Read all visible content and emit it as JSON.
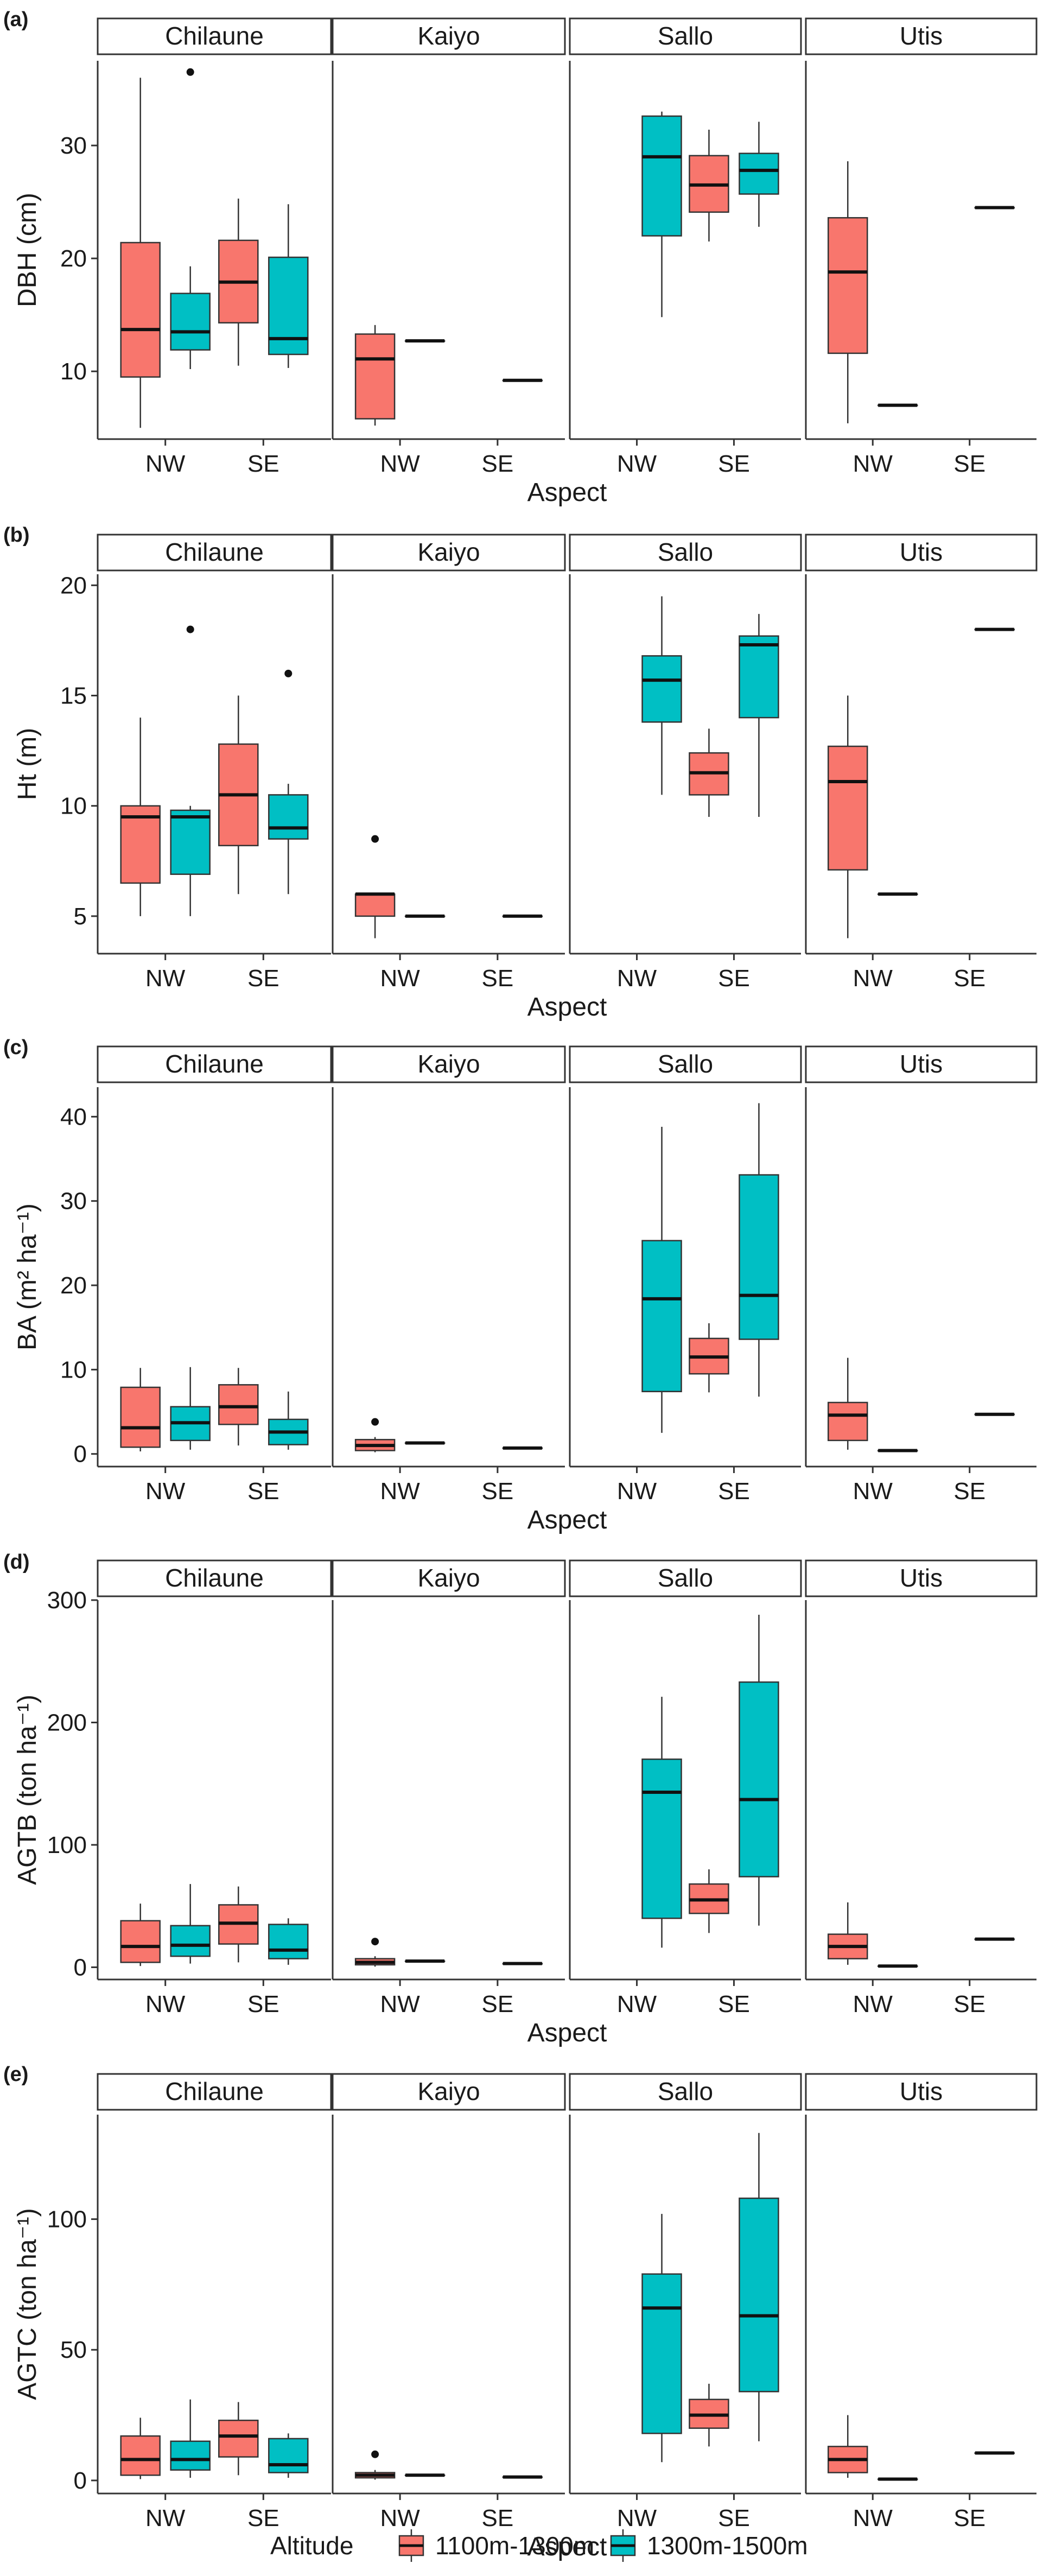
{
  "chart_data": {
    "type": "box",
    "facets": [
      "Chilaune",
      "Kaiyo",
      "Sallo",
      "Utis"
    ],
    "categories": [
      "NW",
      "SE"
    ],
    "xlabel": "Aspect",
    "legend": {
      "title": "Altitude",
      "position": "bottom",
      "entries": [
        {
          "name": "1100m-1300m",
          "color": "#F8766D"
        },
        {
          "name": "1300m-1500m",
          "color": "#00BFC4"
        }
      ]
    },
    "panels": [
      {
        "tag": "(a)",
        "ylabel": "DBH (cm)",
        "ylim": [
          4,
          37.5
        ],
        "yticks": [
          10,
          20,
          30
        ],
        "boxes": [
          {
            "facet": "Chilaune",
            "aspect": "NW",
            "altitude": "1100m-1300m",
            "min": 5,
            "q1": 9.5,
            "median": 13.7,
            "q3": 21.4,
            "max": 36,
            "outliers": []
          },
          {
            "facet": "Chilaune",
            "aspect": "NW",
            "altitude": "1300m-1500m",
            "min": 10.2,
            "q1": 11.9,
            "median": 13.5,
            "q3": 16.9,
            "max": 19.3,
            "outliers": [
              36.5
            ]
          },
          {
            "facet": "Chilaune",
            "aspect": "SE",
            "altitude": "1100m-1300m",
            "min": 10.5,
            "q1": 14.3,
            "median": 17.9,
            "q3": 21.6,
            "max": 25.3,
            "outliers": []
          },
          {
            "facet": "Chilaune",
            "aspect": "SE",
            "altitude": "1300m-1500m",
            "min": 10.3,
            "q1": 11.5,
            "median": 12.9,
            "q3": 20.1,
            "max": 24.8,
            "outliers": []
          },
          {
            "facet": "Kaiyo",
            "aspect": "NW",
            "altitude": "1100m-1300m",
            "min": 5.2,
            "q1": 5.8,
            "median": 11.1,
            "q3": 13.3,
            "max": 14.1,
            "outliers": []
          },
          {
            "facet": "Kaiyo",
            "aspect": "NW",
            "altitude": "1300m-1500m",
            "min": 12.7,
            "q1": 12.7,
            "median": 12.7,
            "q3": 12.7,
            "max": 12.7,
            "outliers": []
          },
          {
            "facet": "Kaiyo",
            "aspect": "SE",
            "altitude": "1300m-1500m",
            "min": 9.2,
            "q1": 9.2,
            "median": 9.2,
            "q3": 9.2,
            "max": 9.2,
            "outliers": []
          },
          {
            "facet": "Sallo",
            "aspect": "NW",
            "altitude": "1300m-1500m",
            "min": 14.8,
            "q1": 22.0,
            "median": 29.0,
            "q3": 32.6,
            "max": 33.0,
            "outliers": []
          },
          {
            "facet": "Sallo",
            "aspect": "SE",
            "altitude": "1100m-1300m",
            "min": 21.5,
            "q1": 24.1,
            "median": 26.5,
            "q3": 29.1,
            "max": 31.4,
            "outliers": []
          },
          {
            "facet": "Sallo",
            "aspect": "SE",
            "altitude": "1300m-1500m",
            "min": 22.8,
            "q1": 25.7,
            "median": 27.8,
            "q3": 29.3,
            "max": 32.1,
            "outliers": []
          },
          {
            "facet": "Utis",
            "aspect": "NW",
            "altitude": "1100m-1300m",
            "min": 5.4,
            "q1": 11.6,
            "median": 18.8,
            "q3": 23.6,
            "max": 28.6,
            "outliers": []
          },
          {
            "facet": "Utis",
            "aspect": "NW",
            "altitude": "1300m-1500m",
            "min": 7.0,
            "q1": 7.0,
            "median": 7.0,
            "q3": 7.0,
            "max": 7.0,
            "outliers": []
          },
          {
            "facet": "Utis",
            "aspect": "SE",
            "altitude": "1300m-1500m",
            "min": 24.5,
            "q1": 24.5,
            "median": 24.5,
            "q3": 24.5,
            "max": 24.5,
            "outliers": []
          }
        ]
      },
      {
        "tag": "(b)",
        "ylabel": "Ht (m)",
        "ylim": [
          3.3,
          20.5
        ],
        "yticks": [
          5,
          10,
          15,
          20
        ],
        "boxes": [
          {
            "facet": "Chilaune",
            "aspect": "NW",
            "altitude": "1100m-1300m",
            "min": 5,
            "q1": 6.5,
            "median": 9.5,
            "q3": 10,
            "max": 14,
            "outliers": []
          },
          {
            "facet": "Chilaune",
            "aspect": "NW",
            "altitude": "1300m-1500m",
            "min": 5,
            "q1": 6.9,
            "median": 9.5,
            "q3": 9.8,
            "max": 10,
            "outliers": [
              18
            ]
          },
          {
            "facet": "Chilaune",
            "aspect": "SE",
            "altitude": "1100m-1300m",
            "min": 6,
            "q1": 8.2,
            "median": 10.5,
            "q3": 12.8,
            "max": 15,
            "outliers": []
          },
          {
            "facet": "Chilaune",
            "aspect": "SE",
            "altitude": "1300m-1500m",
            "min": 6,
            "q1": 8.5,
            "median": 9.0,
            "q3": 10.5,
            "max": 11,
            "outliers": [
              16
            ]
          },
          {
            "facet": "Kaiyo",
            "aspect": "NW",
            "altitude": "1100m-1300m",
            "min": 4,
            "q1": 5,
            "median": 6,
            "q3": 6,
            "max": 6,
            "outliers": [
              8.5
            ]
          },
          {
            "facet": "Kaiyo",
            "aspect": "NW",
            "altitude": "1300m-1500m",
            "min": 5,
            "q1": 5,
            "median": 5,
            "q3": 5,
            "max": 5,
            "outliers": []
          },
          {
            "facet": "Kaiyo",
            "aspect": "SE",
            "altitude": "1300m-1500m",
            "min": 5,
            "q1": 5,
            "median": 5,
            "q3": 5,
            "max": 5,
            "outliers": []
          },
          {
            "facet": "Sallo",
            "aspect": "NW",
            "altitude": "1300m-1500m",
            "min": 10.5,
            "q1": 13.8,
            "median": 15.7,
            "q3": 16.8,
            "max": 19.5,
            "outliers": []
          },
          {
            "facet": "Sallo",
            "aspect": "SE",
            "altitude": "1100m-1300m",
            "min": 9.5,
            "q1": 10.5,
            "median": 11.5,
            "q3": 12.4,
            "max": 13.5,
            "outliers": []
          },
          {
            "facet": "Sallo",
            "aspect": "SE",
            "altitude": "1300m-1500m",
            "min": 9.5,
            "q1": 14.0,
            "median": 17.3,
            "q3": 17.7,
            "max": 18.7,
            "outliers": []
          },
          {
            "facet": "Utis",
            "aspect": "NW",
            "altitude": "1100m-1300m",
            "min": 4,
            "q1": 7.1,
            "median": 11.1,
            "q3": 12.7,
            "max": 15,
            "outliers": []
          },
          {
            "facet": "Utis",
            "aspect": "NW",
            "altitude": "1300m-1500m",
            "min": 6,
            "q1": 6,
            "median": 6,
            "q3": 6,
            "max": 6,
            "outliers": []
          },
          {
            "facet": "Utis",
            "aspect": "SE",
            "altitude": "1300m-1500m",
            "min": 18,
            "q1": 18,
            "median": 18,
            "q3": 18,
            "max": 18,
            "outliers": []
          }
        ]
      },
      {
        "tag": "(c)",
        "ylabel": "BA (m² ha⁻¹)",
        "ylim": [
          -1.5,
          43.5
        ],
        "yticks": [
          0,
          10,
          20,
          30,
          40
        ],
        "boxes": [
          {
            "facet": "Chilaune",
            "aspect": "NW",
            "altitude": "1100m-1300m",
            "min": 0.3,
            "q1": 0.8,
            "median": 3.1,
            "q3": 7.9,
            "max": 10.2,
            "outliers": []
          },
          {
            "facet": "Chilaune",
            "aspect": "NW",
            "altitude": "1300m-1500m",
            "min": 0.5,
            "q1": 1.6,
            "median": 3.7,
            "q3": 5.6,
            "max": 10.3,
            "outliers": []
          },
          {
            "facet": "Chilaune",
            "aspect": "SE",
            "altitude": "1100m-1300m",
            "min": 1.0,
            "q1": 3.5,
            "median": 5.6,
            "q3": 8.2,
            "max": 10.2,
            "outliers": []
          },
          {
            "facet": "Chilaune",
            "aspect": "SE",
            "altitude": "1300m-1500m",
            "min": 0.5,
            "q1": 1.1,
            "median": 2.6,
            "q3": 4.1,
            "max": 7.4,
            "outliers": []
          },
          {
            "facet": "Kaiyo",
            "aspect": "NW",
            "altitude": "1100m-1300m",
            "min": 0.2,
            "q1": 0.4,
            "median": 1.0,
            "q3": 1.7,
            "max": 2.0,
            "outliers": [
              3.8
            ]
          },
          {
            "facet": "Kaiyo",
            "aspect": "NW",
            "altitude": "1300m-1500m",
            "min": 1.3,
            "q1": 1.3,
            "median": 1.3,
            "q3": 1.3,
            "max": 1.3,
            "outliers": []
          },
          {
            "facet": "Kaiyo",
            "aspect": "SE",
            "altitude": "1300m-1500m",
            "min": 0.7,
            "q1": 0.7,
            "median": 0.7,
            "q3": 0.7,
            "max": 0.7,
            "outliers": []
          },
          {
            "facet": "Sallo",
            "aspect": "NW",
            "altitude": "1300m-1500m",
            "min": 2.5,
            "q1": 7.4,
            "median": 18.4,
            "q3": 25.3,
            "max": 38.8,
            "outliers": []
          },
          {
            "facet": "Sallo",
            "aspect": "SE",
            "altitude": "1100m-1300m",
            "min": 7.3,
            "q1": 9.5,
            "median": 11.5,
            "q3": 13.7,
            "max": 15.5,
            "outliers": []
          },
          {
            "facet": "Sallo",
            "aspect": "SE",
            "altitude": "1300m-1500m",
            "min": 6.8,
            "q1": 13.6,
            "median": 18.8,
            "q3": 33.1,
            "max": 41.6,
            "outliers": []
          },
          {
            "facet": "Utis",
            "aspect": "NW",
            "altitude": "1100m-1300m",
            "min": 0.5,
            "q1": 1.6,
            "median": 4.6,
            "q3": 6.1,
            "max": 11.4,
            "outliers": []
          },
          {
            "facet": "Utis",
            "aspect": "NW",
            "altitude": "1300m-1500m",
            "min": 0.4,
            "q1": 0.4,
            "median": 0.4,
            "q3": 0.4,
            "max": 0.4,
            "outliers": []
          },
          {
            "facet": "Utis",
            "aspect": "SE",
            "altitude": "1300m-1500m",
            "min": 4.7,
            "q1": 4.7,
            "median": 4.7,
            "q3": 4.7,
            "max": 4.7,
            "outliers": []
          }
        ]
      },
      {
        "tag": "(d)",
        "ylabel": "AGTB (ton ha⁻¹)",
        "ylim": [
          -10,
          300
        ],
        "yticks": [
          0,
          100,
          200,
          300
        ],
        "boxes": [
          {
            "facet": "Chilaune",
            "aspect": "NW",
            "altitude": "1100m-1300m",
            "min": 1,
            "q1": 4,
            "median": 17,
            "q3": 38,
            "max": 52,
            "outliers": []
          },
          {
            "facet": "Chilaune",
            "aspect": "NW",
            "altitude": "1300m-1500m",
            "min": 3,
            "q1": 9,
            "median": 18,
            "q3": 34,
            "max": 68,
            "outliers": []
          },
          {
            "facet": "Chilaune",
            "aspect": "SE",
            "altitude": "1100m-1300m",
            "min": 4,
            "q1": 19,
            "median": 36,
            "q3": 51,
            "max": 66,
            "outliers": []
          },
          {
            "facet": "Chilaune",
            "aspect": "SE",
            "altitude": "1300m-1500m",
            "min": 2,
            "q1": 7,
            "median": 14,
            "q3": 35,
            "max": 40,
            "outliers": []
          },
          {
            "facet": "Kaiyo",
            "aspect": "NW",
            "altitude": "1100m-1300m",
            "min": 0.5,
            "q1": 2,
            "median": 4,
            "q3": 7,
            "max": 9,
            "outliers": [
              21
            ]
          },
          {
            "facet": "Kaiyo",
            "aspect": "NW",
            "altitude": "1300m-1500m",
            "min": 5,
            "q1": 5,
            "median": 5,
            "q3": 5,
            "max": 5,
            "outliers": []
          },
          {
            "facet": "Kaiyo",
            "aspect": "SE",
            "altitude": "1300m-1500m",
            "min": 3,
            "q1": 3,
            "median": 3,
            "q3": 3,
            "max": 3,
            "outliers": []
          },
          {
            "facet": "Sallo",
            "aspect": "NW",
            "altitude": "1300m-1500m",
            "min": 16,
            "q1": 40,
            "median": 143,
            "q3": 170,
            "max": 221,
            "outliers": []
          },
          {
            "facet": "Sallo",
            "aspect": "SE",
            "altitude": "1100m-1300m",
            "min": 28,
            "q1": 44,
            "median": 55,
            "q3": 68,
            "max": 80,
            "outliers": []
          },
          {
            "facet": "Sallo",
            "aspect": "SE",
            "altitude": "1300m-1500m",
            "min": 34,
            "q1": 74,
            "median": 137,
            "q3": 233,
            "max": 288,
            "outliers": []
          },
          {
            "facet": "Utis",
            "aspect": "NW",
            "altitude": "1100m-1300m",
            "min": 2,
            "q1": 7,
            "median": 17,
            "q3": 27,
            "max": 53,
            "outliers": []
          },
          {
            "facet": "Utis",
            "aspect": "NW",
            "altitude": "1300m-1500m",
            "min": 1,
            "q1": 1,
            "median": 1,
            "q3": 1,
            "max": 1,
            "outliers": []
          },
          {
            "facet": "Utis",
            "aspect": "SE",
            "altitude": "1300m-1500m",
            "min": 23,
            "q1": 23,
            "median": 23,
            "q3": 23,
            "max": 23,
            "outliers": []
          }
        ]
      },
      {
        "tag": "(e)",
        "ylabel": "AGTC (ton ha⁻¹)",
        "ylim": [
          -5,
          140
        ],
        "yticks": [
          0,
          50,
          100
        ],
        "boxes": [
          {
            "facet": "Chilaune",
            "aspect": "NW",
            "altitude": "1100m-1300m",
            "min": 0.5,
            "q1": 2,
            "median": 8,
            "q3": 17,
            "max": 24,
            "outliers": []
          },
          {
            "facet": "Chilaune",
            "aspect": "NW",
            "altitude": "1300m-1500m",
            "min": 1,
            "q1": 4,
            "median": 8,
            "q3": 15,
            "max": 31,
            "outliers": []
          },
          {
            "facet": "Chilaune",
            "aspect": "SE",
            "altitude": "1100m-1300m",
            "min": 2,
            "q1": 9,
            "median": 17,
            "q3": 23,
            "max": 30,
            "outliers": []
          },
          {
            "facet": "Chilaune",
            "aspect": "SE",
            "altitude": "1300m-1500m",
            "min": 1,
            "q1": 3,
            "median": 6,
            "q3": 16,
            "max": 18,
            "outliers": []
          },
          {
            "facet": "Kaiyo",
            "aspect": "NW",
            "altitude": "1100m-1300m",
            "min": 0.3,
            "q1": 1,
            "median": 2,
            "q3": 3,
            "max": 4,
            "outliers": [
              10
            ]
          },
          {
            "facet": "Kaiyo",
            "aspect": "NW",
            "altitude": "1300m-1500m",
            "min": 2,
            "q1": 2,
            "median": 2,
            "q3": 2,
            "max": 2,
            "outliers": []
          },
          {
            "facet": "Kaiyo",
            "aspect": "SE",
            "altitude": "1300m-1500m",
            "min": 1.3,
            "q1": 1.3,
            "median": 1.3,
            "q3": 1.3,
            "max": 1.3,
            "outliers": []
          },
          {
            "facet": "Sallo",
            "aspect": "NW",
            "altitude": "1300m-1500m",
            "min": 7,
            "q1": 18,
            "median": 66,
            "q3": 79,
            "max": 102,
            "outliers": []
          },
          {
            "facet": "Sallo",
            "aspect": "SE",
            "altitude": "1100m-1300m",
            "min": 13,
            "q1": 20,
            "median": 25,
            "q3": 31,
            "max": 37,
            "outliers": []
          },
          {
            "facet": "Sallo",
            "aspect": "SE",
            "altitude": "1300m-1500m",
            "min": 15,
            "q1": 34,
            "median": 63,
            "q3": 108,
            "max": 133,
            "outliers": []
          },
          {
            "facet": "Utis",
            "aspect": "NW",
            "altitude": "1100m-1300m",
            "min": 1,
            "q1": 3,
            "median": 8,
            "q3": 13,
            "max": 25,
            "outliers": []
          },
          {
            "facet": "Utis",
            "aspect": "NW",
            "altitude": "1300m-1500m",
            "min": 0.5,
            "q1": 0.5,
            "median": 0.5,
            "q3": 0.5,
            "max": 0.5,
            "outliers": []
          },
          {
            "facet": "Utis",
            "aspect": "SE",
            "altitude": "1300m-1500m",
            "min": 10.5,
            "q1": 10.5,
            "median": 10.5,
            "q3": 10.5,
            "max": 10.5,
            "outliers": []
          }
        ]
      }
    ]
  }
}
